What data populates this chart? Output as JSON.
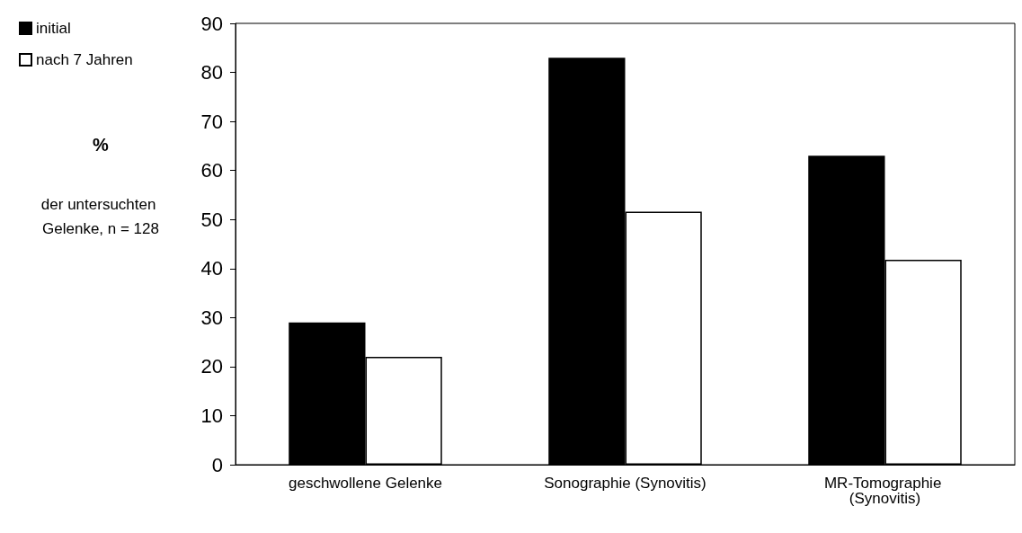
{
  "chart_data": {
    "type": "bar",
    "annotations": [
      "%",
      "der untersuchten Gelenke, n = 128"
    ],
    "categories": [
      "geschwollene Gelenke",
      "Sonographie (Synovitis)",
      "MR-Tomographie (Synovitis)"
    ],
    "series": [
      {
        "name": "initial",
        "color": "#000000",
        "values": [
          29,
          83,
          63
        ]
      },
      {
        "name": "nach 7 Jahren",
        "color": "#ffffff",
        "values": [
          22,
          51.6,
          41.8
        ]
      }
    ],
    "ylim": [
      0,
      90
    ],
    "yticks": [
      0,
      10,
      20,
      30,
      40,
      50,
      60,
      70,
      80,
      90
    ],
    "grid": false,
    "legend": "top left"
  }
}
